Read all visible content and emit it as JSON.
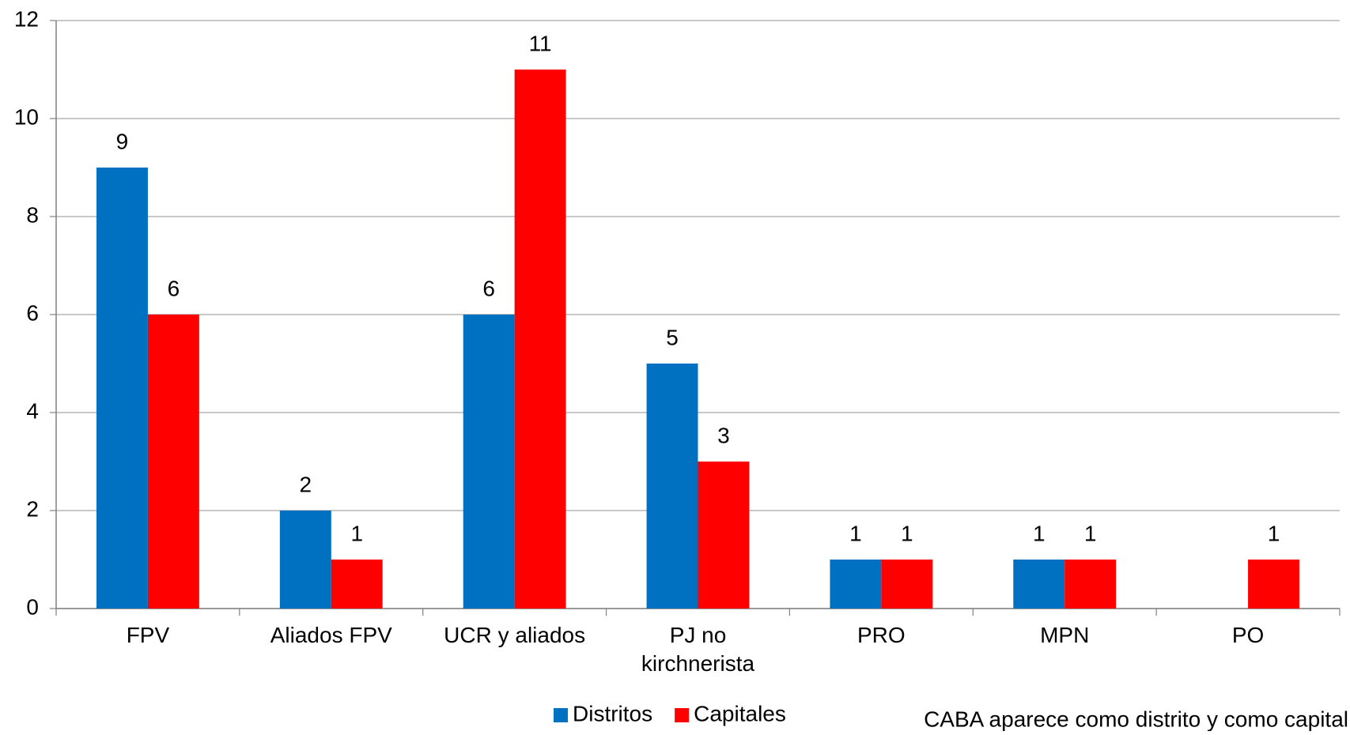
{
  "chart_data": {
    "type": "bar",
    "categories": [
      "FPV",
      "Aliados FPV",
      "UCR y aliados",
      "PJ no kirchnerista",
      "PRO",
      "MPN",
      "PO"
    ],
    "series": [
      {
        "name": "Distritos",
        "color": "#0070c0",
        "values": [
          9,
          2,
          6,
          5,
          1,
          1,
          null
        ]
      },
      {
        "name": "Capitales",
        "color": "#ff0000",
        "values": [
          6,
          1,
          11,
          3,
          1,
          1,
          1
        ]
      }
    ],
    "ylim": [
      0,
      12
    ],
    "yticks": [
      0,
      2,
      4,
      6,
      8,
      10,
      12
    ],
    "grid": true,
    "legend": "bottom",
    "annotation": "CABA aparece como distrito y como capital"
  }
}
